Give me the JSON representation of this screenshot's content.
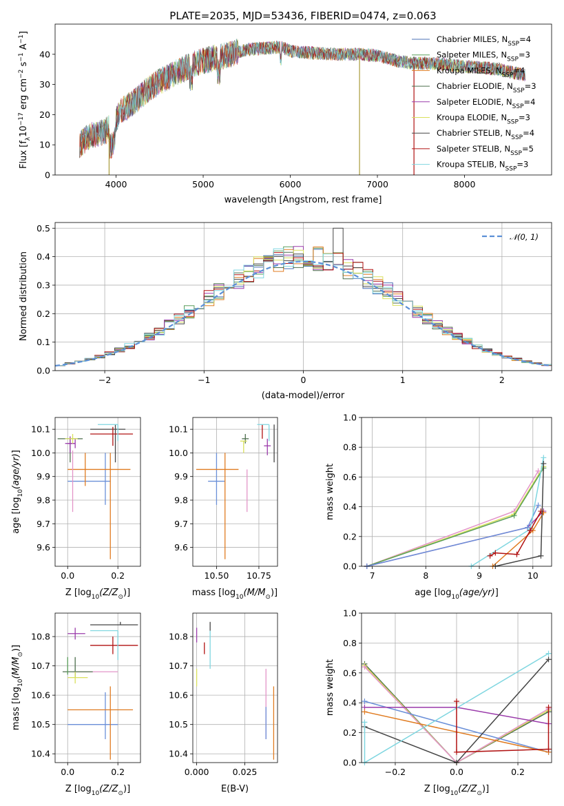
{
  "chart_data": [
    {
      "type": "line",
      "title": "PLATE=2035, MJD=53436, FIBERID=0474, z=0.063",
      "xlabel": "wavelength [Angstrom, rest frame]",
      "ylabel": "Flux [f",
      "xlim": [
        3300,
        9000
      ],
      "ylim": [
        0,
        50
      ],
      "xticks": [
        "4000",
        "5000",
        "6000",
        "7000",
        "8000"
      ],
      "yticks": [
        "0",
        "10",
        "20",
        "30",
        "40"
      ],
      "grid": false,
      "legend_position": "upper-right",
      "legend": [
        {
          "name": "Chabrier MILES, N",
          "sub": "SSP",
          "suffix": "=4",
          "color": "#4a6fb5"
        },
        {
          "name": "Salpeter MILES, N",
          "sub": "SSP",
          "suffix": "=3",
          "color": "#5a9e5a"
        },
        {
          "name": "Kroupa MILES, N",
          "sub": "SSP",
          "suffix": "=4",
          "color": "#e07b20"
        },
        {
          "name": "Chabrier ELODIE, N",
          "sub": "SSP",
          "suffix": "=3",
          "color": "#4c6e4c"
        },
        {
          "name": "Salpeter ELODIE, N",
          "sub": "SSP",
          "suffix": "=4",
          "color": "#9a3aaa"
        },
        {
          "name": "Kroupa ELODIE, N",
          "sub": "SSP",
          "suffix": "=3",
          "color": "#d9e05a"
        },
        {
          "name": "Chabrier STELIB, N",
          "sub": "SSP",
          "suffix": "=4",
          "color": "#444444"
        },
        {
          "name": "Salpeter STELIB, N",
          "sub": "SSP",
          "suffix": "=5",
          "color": "#b01010"
        },
        {
          "name": "Kroupa STELIB, N",
          "sub": "SSP",
          "suffix": "=3",
          "color": "#7fd6e0"
        }
      ],
      "spectrum_continuum": [
        [
          3580,
          10
        ],
        [
          3700,
          13
        ],
        [
          3850,
          14
        ],
        [
          3950,
          16
        ],
        [
          4050,
          21
        ],
        [
          4200,
          24
        ],
        [
          4350,
          28
        ],
        [
          4500,
          31
        ],
        [
          4700,
          34
        ],
        [
          4900,
          37
        ],
        [
          5100,
          38.5
        ],
        [
          5300,
          40
        ],
        [
          5500,
          41.5
        ],
        [
          5700,
          42
        ],
        [
          5900,
          42.5
        ],
        [
          6000,
          41
        ],
        [
          6200,
          40.5
        ],
        [
          6500,
          40
        ],
        [
          6800,
          40
        ],
        [
          7000,
          39.5
        ],
        [
          7200,
          38
        ],
        [
          7400,
          37
        ],
        [
          7600,
          37
        ],
        [
          7800,
          36.5
        ],
        [
          8000,
          36
        ],
        [
          8200,
          35.5
        ],
        [
          8400,
          35
        ],
        [
          8700,
          33
        ]
      ],
      "spikes": [
        [
          3920,
          0
        ],
        [
          6795,
          0
        ],
        [
          7420,
          0
        ]
      ]
    },
    {
      "type": "step",
      "xlabel": "(data-model)/error",
      "ylabel": "Normed distribution",
      "xlim": [
        -2.5,
        2.5
      ],
      "ylim": [
        0,
        0.52
      ],
      "xticks": [
        "−2",
        "−1",
        "0",
        "1",
        "2"
      ],
      "yticks": [
        "0.0",
        "0.1",
        "0.2",
        "0.3",
        "0.4",
        "0.5"
      ],
      "grid": true,
      "legend_position": "upper-right",
      "legend_label": "𝒩(0, 1)",
      "reference_sigma": 1.0,
      "bin_width": 0.1
    },
    {
      "type": "errorbar",
      "xlabel": "Z [log",
      "xlabel_sub": "10",
      "xlabel_tail": "(Z/Z",
      "ylabel": "age  [log",
      "xlim": [
        -0.05,
        0.29
      ],
      "ylim": [
        9.52,
        10.15
      ],
      "xticks": [
        "0.0",
        "0.2"
      ],
      "yticks": [
        "9.6",
        "9.7",
        "9.8",
        "9.9",
        "10.0",
        "10.1"
      ],
      "points": [
        {
          "x": 0.15,
          "y": 9.88,
          "xerr": [
            0.15,
            0.02
          ],
          "yerr": [
            0.1,
            0.12
          ],
          "color": "#6a8fd8"
        },
        {
          "x": 0.07,
          "y": 9.93,
          "xerr": [
            0.07,
            0.18
          ],
          "yerr": [
            0.07,
            0.07
          ],
          "color": "#e07b20"
        },
        {
          "x": 0.17,
          "y": 9.93,
          "xerr": [
            0.0,
            0.0
          ],
          "yerr": [
            0.38,
            0.07
          ],
          "color": "#e07b20"
        },
        {
          "x": 0.02,
          "y": 9.93,
          "xerr": [
            0.0,
            0.0
          ],
          "yerr": [
            0.18,
            0.08
          ],
          "color": "#e394c8"
        },
        {
          "x": 0.01,
          "y": 10.06,
          "xerr": [
            0.05,
            0.05
          ],
          "yerr": [
            0.1,
            0.0
          ],
          "color": "#4c6e4c"
        },
        {
          "x": 0.01,
          "y": 10.04,
          "xerr": [
            0.02,
            0.02
          ],
          "yerr": [
            0.04,
            0.03
          ],
          "color": "#9a3aaa"
        },
        {
          "x": 0.03,
          "y": 10.04,
          "xerr": [
            0.03,
            0.0
          ],
          "yerr": [
            0.02,
            0.02
          ],
          "color": "#9a3aaa"
        },
        {
          "x": 0.02,
          "y": 10.06,
          "xerr": [
            0.03,
            0.02
          ],
          "yerr": [
            0.02,
            0.02
          ],
          "color": "#d9e05a"
        },
        {
          "x": 0.19,
          "y": 10.1,
          "xerr": [
            0.1,
            0.04
          ],
          "yerr": [
            0.14,
            0.02
          ],
          "color": "#444444"
        },
        {
          "x": 0.18,
          "y": 10.08,
          "xerr": [
            0.09,
            0.08
          ],
          "yerr": [
            0.05,
            0.03
          ],
          "color": "#b01010"
        },
        {
          "x": 0.2,
          "y": 10.12,
          "xerr": [
            0.08,
            0.0
          ],
          "yerr": [
            0.07,
            0.0
          ],
          "color": "#7fd6e0"
        }
      ]
    },
    {
      "type": "errorbar",
      "xlabel": "mass [log",
      "xlabel_sub": "10",
      "xlabel_tail": "(M/M",
      "xlim": [
        10.36,
        10.86
      ],
      "ylim": [
        9.52,
        10.15
      ],
      "xticks": [
        "10.50",
        "10.75"
      ],
      "yticks": [
        "9.6",
        "9.7",
        "9.8",
        "9.9",
        "10.0",
        "10.1"
      ],
      "points": [
        {
          "x": 10.5,
          "y": 9.88,
          "xerr": [
            0.05,
            0.05
          ],
          "yerr": [
            0.1,
            0.12
          ],
          "color": "#6a8fd8"
        },
        {
          "x": 10.55,
          "y": 9.93,
          "xerr": [
            0.17,
            0.08
          ],
          "yerr": [
            0.38,
            0.07
          ],
          "color": "#e07b20"
        },
        {
          "x": 10.68,
          "y": 9.93,
          "xerr": [
            0.0,
            0.0
          ],
          "yerr": [
            0.18,
            0.0
          ],
          "color": "#e394c8"
        },
        {
          "x": 10.67,
          "y": 10.06,
          "xerr": [
            0.02,
            0.02
          ],
          "yerr": [
            0.02,
            0.02
          ],
          "color": "#4c6e4c"
        },
        {
          "x": 10.8,
          "y": 10.03,
          "xerr": [
            0.02,
            0.02
          ],
          "yerr": [
            0.04,
            0.03
          ],
          "color": "#9a3aaa"
        },
        {
          "x": 10.66,
          "y": 10.05,
          "xerr": [
            0.02,
            0.02
          ],
          "yerr": [
            0.05,
            0.0
          ],
          "color": "#d9e05a"
        },
        {
          "x": 10.84,
          "y": 10.1,
          "xerr": [
            0.0,
            0.0
          ],
          "yerr": [
            0.14,
            0.02
          ],
          "color": "#444444"
        },
        {
          "x": 10.77,
          "y": 10.09,
          "xerr": [
            0.0,
            0.0
          ],
          "yerr": [
            0.03,
            0.03
          ],
          "color": "#b01010"
        },
        {
          "x": 10.81,
          "y": 10.12,
          "xerr": [
            0.07,
            0.0
          ],
          "yerr": [
            0.07,
            0.0
          ],
          "color": "#7fd6e0"
        }
      ]
    },
    {
      "type": "line",
      "xlabel": "age  [log",
      "ylabel": "mass weight",
      "xlim": [
        6.8,
        10.35
      ],
      "ylim": [
        0,
        1.0
      ],
      "xticks": [
        "7",
        "8",
        "9",
        "10"
      ],
      "yticks": [
        "0.0",
        "0.2",
        "0.4",
        "0.6",
        "0.8",
        "1.0"
      ],
      "grid": true,
      "series": [
        {
          "color": "#e394c8",
          "x": [
            6.9,
            9.65,
            10.1
          ],
          "y": [
            0.0,
            0.37,
            0.64
          ]
        },
        {
          "color": "#d9e05a",
          "x": [
            6.9,
            9.65,
            10.2
          ],
          "y": [
            0.0,
            0.35,
            0.67
          ]
        },
        {
          "color": "#5a9e5a",
          "x": [
            6.9,
            9.65,
            10.2
          ],
          "y": [
            0.0,
            0.34,
            0.66
          ]
        },
        {
          "color": "#9a3aaa",
          "x": [
            6.9,
            9.9,
            10.2
          ],
          "y": [
            0.0,
            0.26,
            0.37
          ]
        },
        {
          "color": "#6a8fd8",
          "x": [
            6.9,
            9.9,
            10.1
          ],
          "y": [
            0.0,
            0.26,
            0.41
          ]
        },
        {
          "color": "#7fd6e0",
          "x": [
            8.85,
            9.95,
            10.2
          ],
          "y": [
            0.0,
            0.25,
            0.73
          ]
        },
        {
          "color": "#e07b20",
          "x": [
            9.25,
            10.0,
            10.2
          ],
          "y": [
            0.0,
            0.24,
            0.36
          ]
        },
        {
          "color": "#b01010",
          "x": [
            9.2,
            9.3,
            9.7,
            9.95,
            10.15
          ],
          "y": [
            0.07,
            0.09,
            0.08,
            0.24,
            0.37
          ]
        },
        {
          "color": "#444444",
          "x": [
            9.3,
            10.15,
            10.2
          ],
          "y": [
            0.0,
            0.07,
            0.69
          ]
        }
      ]
    },
    {
      "type": "errorbar",
      "xlabel": "Z [log",
      "ylabel": "mass [log",
      "xlim": [
        -0.05,
        0.29
      ],
      "ylim": [
        10.37,
        10.88
      ],
      "xticks": [
        "0.0",
        "0.2"
      ],
      "yticks": [
        "10.4",
        "10.5",
        "10.6",
        "10.7",
        "10.8"
      ],
      "points": [
        {
          "x": 0.15,
          "y": 10.5,
          "xerr": [
            0.15,
            0.05
          ],
          "yerr": [
            0.05,
            0.11
          ],
          "color": "#6a8fd8"
        },
        {
          "x": 0.17,
          "y": 10.55,
          "xerr": [
            0.17,
            0.09
          ],
          "yerr": [
            0.17,
            0.08
          ],
          "color": "#e07b20"
        },
        {
          "x": 0.1,
          "y": 10.68,
          "xerr": [
            0.08,
            0.1
          ],
          "yerr": [
            0.0,
            0.0
          ],
          "color": "#e394c8"
        },
        {
          "x": 0.03,
          "y": 10.68,
          "xerr": [
            0.05,
            0.07
          ],
          "yerr": [
            0.02,
            0.05
          ],
          "color": "#4c6e4c"
        },
        {
          "x": 0.03,
          "y": 10.81,
          "xerr": [
            0.03,
            0.04
          ],
          "yerr": [
            0.02,
            0.02
          ],
          "color": "#9a3aaa"
        },
        {
          "x": 0.03,
          "y": 10.66,
          "xerr": [
            0.03,
            0.05
          ],
          "yerr": [
            0.02,
            0.02
          ],
          "color": "#d9e05a"
        },
        {
          "x": 0.21,
          "y": 10.84,
          "xerr": [
            0.12,
            0.07
          ],
          "yerr": [
            0.0,
            0.01
          ],
          "color": "#444444"
        },
        {
          "x": 0.18,
          "y": 10.77,
          "xerr": [
            0.09,
            0.1
          ],
          "yerr": [
            0.03,
            0.03
          ],
          "color": "#b01010"
        },
        {
          "x": 0.2,
          "y": 10.82,
          "xerr": [
            0.11,
            0.0
          ],
          "yerr": [
            0.1,
            0.0
          ],
          "color": "#7fd6e0"
        },
        {
          "x": 0.0,
          "y": 10.7,
          "xerr": [
            0.0,
            0.0
          ],
          "yerr": [
            0.03,
            0.03
          ],
          "color": "#5a9e5a"
        }
      ]
    },
    {
      "type": "errorbar",
      "xlabel": "E(B-V)",
      "xlim": [
        -0.002,
        0.042
      ],
      "ylim": [
        10.37,
        10.88
      ],
      "xticks": [
        "0.000",
        "0.025"
      ],
      "yticks": [
        "10.4",
        "10.5",
        "10.6",
        "10.7",
        "10.8"
      ],
      "points": [
        {
          "x": 0.0,
          "y": 10.8,
          "xerr": [
            0.0,
            0.0
          ],
          "yerr": [
            0.02,
            0.03
          ],
          "color": "#9a3aaa"
        },
        {
          "x": 0.0,
          "y": 10.66,
          "xerr": [
            0.0,
            0.0
          ],
          "yerr": [
            0.03,
            0.03
          ],
          "color": "#d9e05a"
        },
        {
          "x": 0.004,
          "y": 10.76,
          "xerr": [
            0.0,
            0.0
          ],
          "yerr": [
            0.02,
            0.02
          ],
          "color": "#b01010"
        },
        {
          "x": 0.007,
          "y": 10.84,
          "xerr": [
            0.0,
            0.0
          ],
          "yerr": [
            0.02,
            0.01
          ],
          "color": "#444444"
        },
        {
          "x": 0.007,
          "y": 10.76,
          "xerr": [
            0.0,
            0.0
          ],
          "yerr": [
            0.07,
            0.06
          ],
          "color": "#7fd6e0"
        },
        {
          "x": 0.036,
          "y": 10.5,
          "xerr": [
            0.0,
            0.0
          ],
          "yerr": [
            0.05,
            0.19
          ],
          "color": "#e394c8"
        },
        {
          "x": 0.036,
          "y": 10.5,
          "xerr": [
            0.0,
            0.0
          ],
          "yerr": [
            0.05,
            0.06
          ],
          "color": "#6a8fd8"
        },
        {
          "x": 0.04,
          "y": 10.52,
          "xerr": [
            0.0,
            0.0
          ],
          "yerr": [
            0.14,
            0.11
          ],
          "color": "#e07b20"
        }
      ]
    },
    {
      "type": "line",
      "xlabel": "Z [log",
      "ylabel": "mass weight",
      "xlim": [
        -0.31,
        0.31
      ],
      "ylim": [
        0,
        1.0
      ],
      "xticks": [
        "−0.2",
        "0.0",
        "0.2"
      ],
      "yticks": [
        "0.0",
        "0.2",
        "0.4",
        "0.6",
        "0.8",
        "1.0"
      ],
      "grid": true,
      "series": [
        {
          "color": "#4c6e4c",
          "x": [
            -0.3,
            0.0,
            0.3
          ],
          "y": [
            0.66,
            0.0,
            0.34
          ]
        },
        {
          "color": "#d9e05a",
          "x": [
            -0.3,
            0.0,
            0.3
          ],
          "y": [
            0.65,
            0.0,
            0.35
          ]
        },
        {
          "color": "#e394c8",
          "x": [
            -0.3,
            0.0,
            0.3
          ],
          "y": [
            0.64,
            0.0,
            0.36
          ]
        },
        {
          "color": "#6a8fd8",
          "x": [
            -0.3,
            0.3
          ],
          "y": [
            0.41,
            0.07
          ]
        },
        {
          "color": "#9a3aaa",
          "x": [
            -0.3,
            0.0,
            0.3
          ],
          "y": [
            0.37,
            0.37,
            0.26
          ]
        },
        {
          "color": "#e07b20",
          "x": [
            -0.3,
            0.3
          ],
          "y": [
            0.34,
            0.07
          ]
        },
        {
          "color": "#444444",
          "x": [
            -0.3,
            0.0,
            0.3
          ],
          "y": [
            0.24,
            0.0,
            0.69
          ]
        },
        {
          "color": "#7fd6e0",
          "x": [
            -0.3,
            -0.3,
            0.3
          ],
          "y": [
            0.27,
            0.0,
            0.73
          ]
        },
        {
          "color": "#b01010",
          "x": [
            0.0,
            0.0,
            0.3,
            0.3
          ],
          "y": [
            0.41,
            0.07,
            0.09,
            0.37
          ]
        }
      ]
    }
  ]
}
